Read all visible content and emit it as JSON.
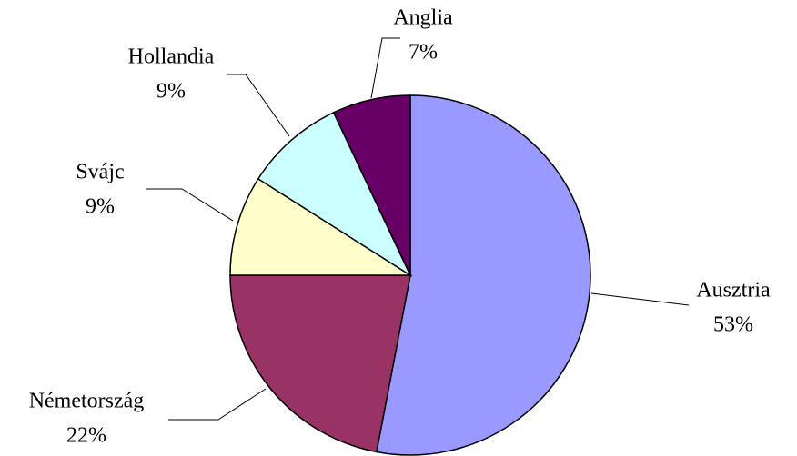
{
  "chart_data": {
    "type": "pie",
    "categories": [
      "Ausztria",
      "Németország",
      "Svájc",
      "Hollandia",
      "Anglia"
    ],
    "values": [
      53,
      22,
      9,
      9,
      7
    ],
    "value_labels": [
      "53%",
      "22%",
      "9%",
      "9%",
      "7%"
    ],
    "colors": [
      "#9999ff",
      "#993366",
      "#ffffcc",
      "#ccffff",
      "#660066"
    ]
  }
}
